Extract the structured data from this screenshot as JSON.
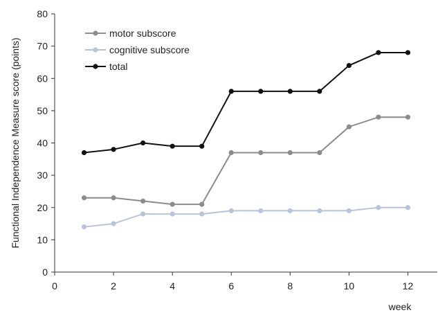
{
  "chart_data": {
    "type": "line",
    "ylabel": "Functional Independence  Measure score (points)",
    "xlabel": "week",
    "xlim": [
      0,
      13
    ],
    "ylim": [
      0,
      80
    ],
    "xticks": [
      0,
      2,
      4,
      6,
      8,
      10,
      12
    ],
    "yticks": [
      0,
      10,
      20,
      30,
      40,
      50,
      60,
      70,
      80
    ],
    "grid": false,
    "legend_position": "top-left",
    "x": [
      1,
      2,
      3,
      4,
      5,
      6,
      7,
      8,
      9,
      10,
      11,
      12
    ],
    "series": [
      {
        "name": "motor subscore",
        "color": "#8c8c8c",
        "values": [
          23,
          23,
          22,
          21,
          21,
          37,
          37,
          37,
          37,
          45,
          48,
          48
        ]
      },
      {
        "name": "cognitive subscore",
        "color": "#b8c4d8",
        "values": [
          14,
          15,
          18,
          18,
          18,
          19,
          19,
          19,
          19,
          19,
          20,
          20
        ]
      },
      {
        "name": "total",
        "color": "#111111",
        "values": [
          37,
          38,
          40,
          39,
          39,
          56,
          56,
          56,
          56,
          64,
          68,
          68
        ]
      }
    ]
  }
}
